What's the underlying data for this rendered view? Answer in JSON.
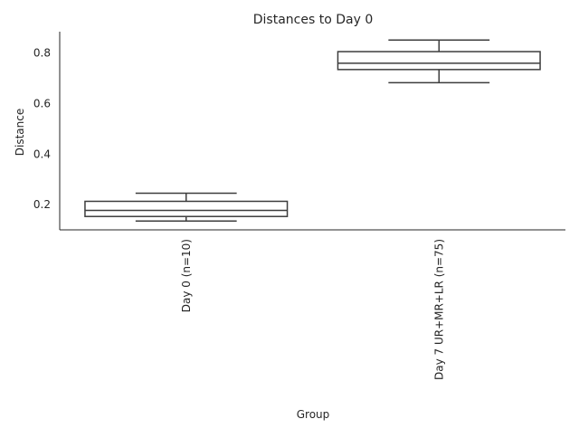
{
  "chart_data": {
    "type": "box",
    "title": "Distances to Day 0",
    "xlabel": "Group",
    "ylabel": "Distance",
    "ylim": [
      0.1,
      0.885
    ],
    "yticks": [
      0.2,
      0.4,
      0.6,
      0.8
    ],
    "ytick_labels": [
      "0.2",
      "0.4",
      "0.6",
      "0.8"
    ],
    "grid": false,
    "colors": {
      "line": "#3d3d3d",
      "text": "#262626",
      "background": "#ffffff"
    },
    "categories": [
      "Day 0 (n=10)",
      "Day 7 UR+MR+LR (n=75)"
    ],
    "boxes": [
      {
        "category": "Day 0 (n=10)",
        "whisker_low": 0.135,
        "q1": 0.153,
        "median": 0.177,
        "q3": 0.213,
        "whisker_high": 0.245
      },
      {
        "category": "Day 7 UR+MR+LR (n=75)",
        "whisker_low": 0.683,
        "q1": 0.735,
        "median": 0.76,
        "q3": 0.806,
        "whisker_high": 0.852
      }
    ]
  }
}
